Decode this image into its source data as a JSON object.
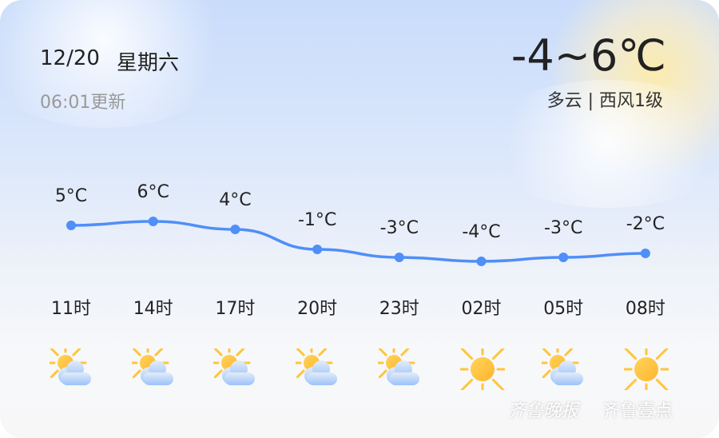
{
  "header": {
    "date": "12/20",
    "weekday": "星期六",
    "updated": "06:01更新",
    "temp_range": "-4~6℃",
    "condition": "多云 | 西风1级"
  },
  "watermark": {
    "brand1": "齐鲁晚报",
    "brand2": "齐鲁壹点"
  },
  "colors": {
    "line": "#4f8ff7",
    "sun": "#ffc53d"
  },
  "chart_data": {
    "type": "line",
    "categories": [
      "11时",
      "14时",
      "17时",
      "20时",
      "23时",
      "02时",
      "05时",
      "08时"
    ],
    "values": [
      5,
      6,
      4,
      -1,
      -3,
      -4,
      -3,
      -2
    ],
    "labels": [
      "5°C",
      "6°C",
      "4°C",
      "-1°C",
      "-3°C",
      "-4°C",
      "-3°C",
      "-2°C"
    ],
    "icons": [
      "partly-cloudy",
      "partly-cloudy",
      "partly-cloudy",
      "partly-cloudy",
      "partly-cloudy",
      "sunny",
      "partly-cloudy",
      "sunny"
    ],
    "grid": false
  }
}
